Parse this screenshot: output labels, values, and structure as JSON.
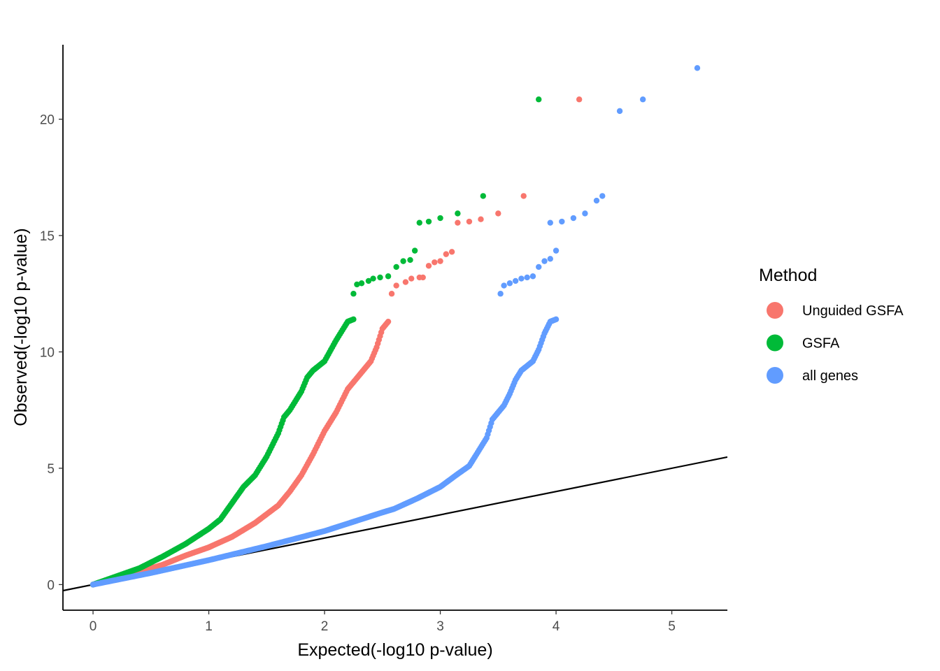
{
  "chart_data": {
    "type": "scatter",
    "title": "",
    "xlabel": "Expected(-log10 p-value)",
    "ylabel": "Observed(-log10 p-value)",
    "xlim": [
      -0.26,
      5.48
    ],
    "ylim": [
      -1.1,
      23.2
    ],
    "xticks": [
      0,
      1,
      2,
      3,
      4,
      5
    ],
    "yticks": [
      0,
      5,
      10,
      15,
      20
    ],
    "grid": false,
    "legend": {
      "title": "Method",
      "placement": "right"
    },
    "reference_line": {
      "intercept": 0,
      "slope": 1,
      "color": "#000000"
    },
    "series": [
      {
        "name": "Unguided GSFA",
        "color": "#F8766D",
        "curve": [
          [
            0,
            0
          ],
          [
            0.2,
            0.25
          ],
          [
            0.4,
            0.55
          ],
          [
            0.6,
            0.85
          ],
          [
            0.8,
            1.25
          ],
          [
            1.0,
            1.6
          ],
          [
            1.2,
            2.05
          ],
          [
            1.4,
            2.65
          ],
          [
            1.6,
            3.4
          ],
          [
            1.7,
            4.0
          ],
          [
            1.8,
            4.7
          ],
          [
            1.9,
            5.6
          ],
          [
            2.0,
            6.6
          ],
          [
            2.1,
            7.4
          ],
          [
            2.2,
            8.4
          ],
          [
            2.3,
            9.0
          ],
          [
            2.35,
            9.3
          ],
          [
            2.4,
            9.6
          ],
          [
            2.45,
            10.2
          ],
          [
            2.5,
            11.0
          ],
          [
            2.55,
            11.3
          ]
        ],
        "points": [
          [
            2.58,
            12.5
          ],
          [
            2.62,
            12.85
          ],
          [
            2.7,
            13.0
          ],
          [
            2.75,
            13.15
          ],
          [
            2.82,
            13.2
          ],
          [
            2.85,
            13.2
          ],
          [
            2.9,
            13.7
          ],
          [
            2.95,
            13.85
          ],
          [
            3.0,
            13.9
          ],
          [
            3.05,
            14.2
          ],
          [
            3.1,
            14.3
          ],
          [
            3.15,
            15.55
          ],
          [
            3.25,
            15.6
          ],
          [
            3.35,
            15.7
          ],
          [
            3.5,
            15.95
          ],
          [
            3.72,
            16.7
          ],
          [
            4.2,
            20.85
          ]
        ]
      },
      {
        "name": "GSFA",
        "color": "#00BA38",
        "curve": [
          [
            0,
            0
          ],
          [
            0.2,
            0.35
          ],
          [
            0.4,
            0.7
          ],
          [
            0.6,
            1.2
          ],
          [
            0.8,
            1.75
          ],
          [
            1.0,
            2.4
          ],
          [
            1.1,
            2.8
          ],
          [
            1.2,
            3.5
          ],
          [
            1.3,
            4.2
          ],
          [
            1.4,
            4.7
          ],
          [
            1.5,
            5.5
          ],
          [
            1.6,
            6.5
          ],
          [
            1.65,
            7.2
          ],
          [
            1.7,
            7.5
          ],
          [
            1.8,
            8.3
          ],
          [
            1.85,
            8.9
          ],
          [
            1.9,
            9.2
          ],
          [
            2.0,
            9.6
          ],
          [
            2.1,
            10.5
          ],
          [
            2.2,
            11.3
          ],
          [
            2.25,
            11.4
          ]
        ],
        "points": [
          [
            2.25,
            12.5
          ],
          [
            2.28,
            12.9
          ],
          [
            2.32,
            12.95
          ],
          [
            2.38,
            13.05
          ],
          [
            2.42,
            13.15
          ],
          [
            2.48,
            13.2
          ],
          [
            2.55,
            13.25
          ],
          [
            2.62,
            13.65
          ],
          [
            2.68,
            13.9
          ],
          [
            2.74,
            13.95
          ],
          [
            2.78,
            14.35
          ],
          [
            2.82,
            15.55
          ],
          [
            2.9,
            15.6
          ],
          [
            3.0,
            15.75
          ],
          [
            3.15,
            15.95
          ],
          [
            3.37,
            16.7
          ],
          [
            3.85,
            20.85
          ]
        ]
      },
      {
        "name": "all genes",
        "color": "#619CFF",
        "curve": [
          [
            0,
            0
          ],
          [
            0.5,
            0.5
          ],
          [
            1.0,
            1.05
          ],
          [
            1.5,
            1.65
          ],
          [
            2.0,
            2.3
          ],
          [
            2.5,
            3.1
          ],
          [
            2.6,
            3.25
          ],
          [
            2.8,
            3.7
          ],
          [
            3.0,
            4.2
          ],
          [
            3.15,
            4.75
          ],
          [
            3.25,
            5.1
          ],
          [
            3.3,
            5.5
          ],
          [
            3.4,
            6.3
          ],
          [
            3.45,
            7.1
          ],
          [
            3.55,
            7.7
          ],
          [
            3.6,
            8.2
          ],
          [
            3.65,
            8.8
          ],
          [
            3.7,
            9.2
          ],
          [
            3.8,
            9.6
          ],
          [
            3.85,
            10.1
          ],
          [
            3.9,
            10.8
          ],
          [
            3.95,
            11.3
          ],
          [
            4.0,
            11.4
          ]
        ],
        "points": [
          [
            3.52,
            12.5
          ],
          [
            3.55,
            12.85
          ],
          [
            3.6,
            12.95
          ],
          [
            3.65,
            13.05
          ],
          [
            3.7,
            13.15
          ],
          [
            3.75,
            13.2
          ],
          [
            3.8,
            13.25
          ],
          [
            3.85,
            13.65
          ],
          [
            3.9,
            13.9
          ],
          [
            3.95,
            14.0
          ],
          [
            4.0,
            14.35
          ],
          [
            3.95,
            15.55
          ],
          [
            4.05,
            15.6
          ],
          [
            4.15,
            15.75
          ],
          [
            4.25,
            15.95
          ],
          [
            4.35,
            16.5
          ],
          [
            4.4,
            16.7
          ],
          [
            4.55,
            20.35
          ],
          [
            4.75,
            20.85
          ],
          [
            5.22,
            22.2
          ]
        ]
      }
    ]
  }
}
